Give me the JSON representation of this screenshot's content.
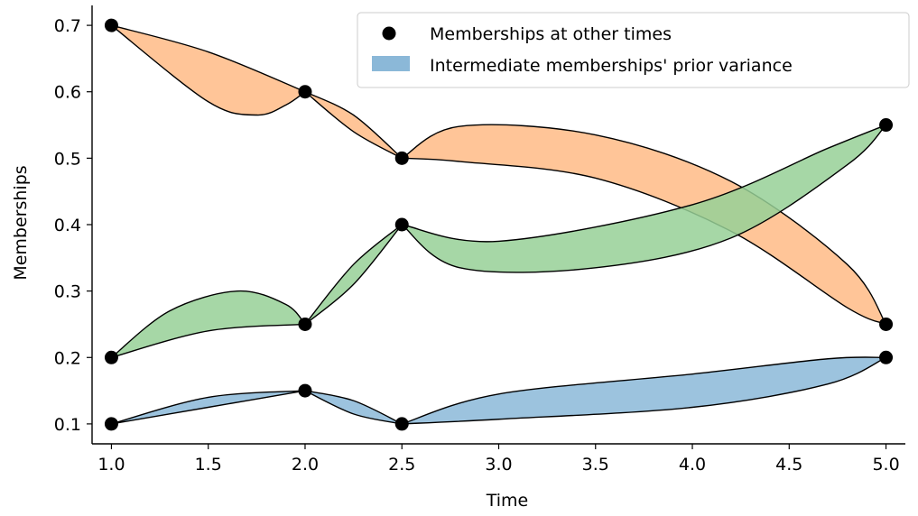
{
  "chart_data": {
    "type": "line",
    "xlabel": "Time",
    "ylabel": "Memberships",
    "xlim": [
      0.9,
      5.1
    ],
    "ylim": [
      0.07,
      0.73
    ],
    "x_ticks": [
      1.0,
      1.5,
      2.0,
      2.5,
      3.0,
      3.5,
      4.0,
      4.5,
      5.0
    ],
    "x_tick_labels": [
      "1.0",
      "1.5",
      "2.0",
      "2.5",
      "3.0",
      "3.5",
      "4.0",
      "4.5",
      "5.0"
    ],
    "y_ticks": [
      0.1,
      0.2,
      0.3,
      0.4,
      0.5,
      0.6,
      0.7
    ],
    "y_tick_labels": [
      "0.1",
      "0.2",
      "0.3",
      "0.4",
      "0.5",
      "0.6",
      "0.7"
    ],
    "grid": false,
    "legend": {
      "placement": "top-right",
      "entries": [
        {
          "label": "Memberships at other times",
          "kind": "marker"
        },
        {
          "label": "Intermediate memberships' prior variance",
          "kind": "patch",
          "color": "#8bb8d8"
        }
      ]
    },
    "series": [
      {
        "color": "#8bb8d8",
        "points": [
          [
            1.0,
            0.1
          ],
          [
            2.0,
            0.15
          ],
          [
            2.5,
            0.1
          ],
          [
            5.0,
            0.2
          ]
        ],
        "bands": [
          {
            "from": [
              1.0,
              0.1
            ],
            "to": [
              2.0,
              0.15
            ],
            "upper": [
              [
                1.5,
                0.14
              ]
            ],
            "lower": [
              [
                1.5,
                0.125
              ]
            ]
          },
          {
            "from": [
              2.0,
              0.15
            ],
            "to": [
              2.5,
              0.1
            ],
            "upper": [
              [
                2.25,
                0.135
              ]
            ],
            "lower": [
              [
                2.25,
                0.115
              ]
            ]
          },
          {
            "from": [
              2.5,
              0.1
            ],
            "to": [
              5.0,
              0.2
            ],
            "upper": [
              [
                3.0,
                0.145
              ],
              [
                4.0,
                0.175
              ],
              [
                4.7,
                0.198
              ]
            ],
            "lower": [
              [
                3.0,
                0.107
              ],
              [
                4.0,
                0.125
              ],
              [
                4.7,
                0.16
              ]
            ]
          }
        ]
      },
      {
        "color": "#ffbb86",
        "points": [
          [
            1.0,
            0.7
          ],
          [
            2.0,
            0.6
          ],
          [
            2.5,
            0.5
          ],
          [
            5.0,
            0.25
          ]
        ],
        "bands": [
          {
            "from": [
              1.0,
              0.7
            ],
            "to": [
              2.0,
              0.6
            ],
            "upper": [
              [
                1.5,
                0.66
              ]
            ],
            "lower": [
              [
                1.5,
                0.585
              ],
              [
                1.75,
                0.565
              ],
              [
                1.9,
                0.58
              ]
            ]
          },
          {
            "from": [
              2.0,
              0.6
            ],
            "to": [
              2.5,
              0.5
            ],
            "upper": [
              [
                2.25,
                0.565
              ]
            ],
            "lower": [
              [
                2.25,
                0.54
              ]
            ]
          },
          {
            "from": [
              2.5,
              0.5
            ],
            "to": [
              5.0,
              0.25
            ],
            "upper": [
              [
                2.8,
                0.548
              ],
              [
                3.5,
                0.535
              ],
              [
                4.2,
                0.465
              ],
              [
                4.8,
                0.34
              ]
            ],
            "lower": [
              [
                2.8,
                0.495
              ],
              [
                3.5,
                0.47
              ],
              [
                4.2,
                0.39
              ],
              [
                4.8,
                0.275
              ]
            ]
          }
        ]
      },
      {
        "color": "#96d096",
        "points": [
          [
            1.0,
            0.2
          ],
          [
            2.0,
            0.25
          ],
          [
            2.5,
            0.4
          ],
          [
            5.0,
            0.55
          ]
        ],
        "bands": [
          {
            "from": [
              1.0,
              0.2
            ],
            "to": [
              2.0,
              0.25
            ],
            "upper": [
              [
                1.3,
                0.27
              ],
              [
                1.65,
                0.3
              ],
              [
                1.9,
                0.28
              ]
            ],
            "lower": [
              [
                1.5,
                0.24
              ]
            ]
          },
          {
            "from": [
              2.0,
              0.25
            ],
            "to": [
              2.5,
              0.4
            ],
            "upper": [
              [
                2.25,
                0.34
              ]
            ],
            "lower": [
              [
                2.25,
                0.31
              ]
            ]
          },
          {
            "from": [
              2.5,
              0.4
            ],
            "to": [
              5.0,
              0.55
            ],
            "upper": [
              [
                3.0,
                0.375
              ],
              [
                4.0,
                0.43
              ],
              [
                4.7,
                0.515
              ]
            ],
            "lower": [
              [
                2.8,
                0.335
              ],
              [
                3.5,
                0.335
              ],
              [
                4.2,
                0.38
              ],
              [
                4.8,
                0.49
              ]
            ]
          }
        ]
      }
    ]
  }
}
